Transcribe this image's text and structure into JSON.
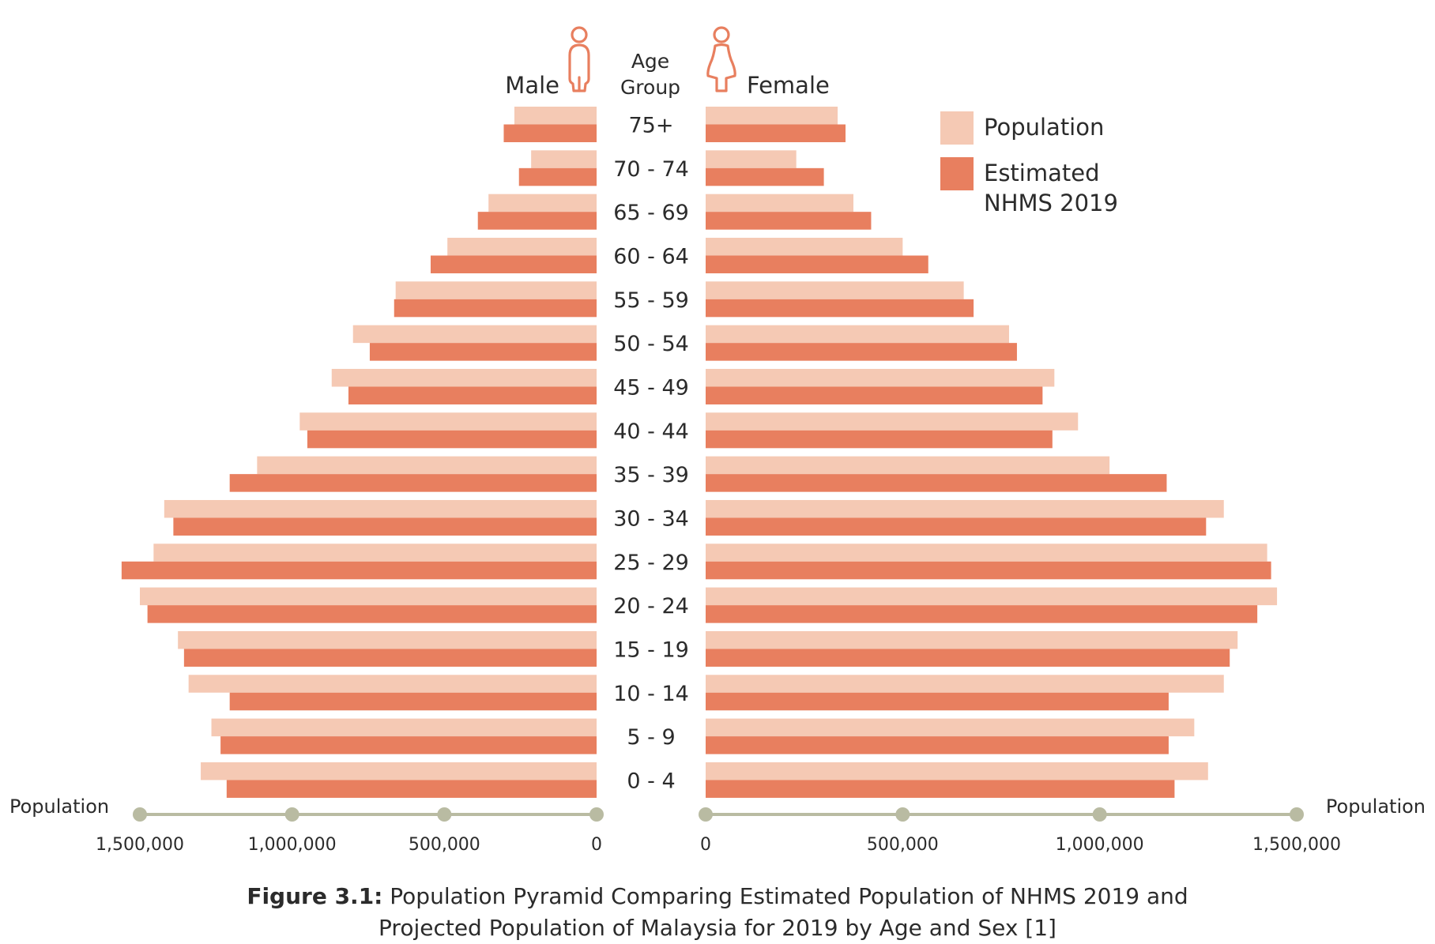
{
  "chart_data": {
    "type": "bar",
    "subtype": "population-pyramid",
    "headers": {
      "male": "Male",
      "female": "Female",
      "age_group_line1": "Age",
      "age_group_line2": "Group"
    },
    "categories": [
      "75+",
      "70 - 74",
      "65 - 69",
      "60 - 64",
      "55 - 59",
      "50 - 54",
      "45 - 49",
      "40 - 44",
      "35 - 39",
      "30 - 34",
      "25 - 29",
      "20 - 24",
      "15 - 19",
      "10 - 14",
      "5 - 9",
      "0 - 4"
    ],
    "series": [
      {
        "name": "Population",
        "sex": "male",
        "values": [
          270000,
          215000,
          355000,
          490000,
          660000,
          800000,
          870000,
          975000,
          1115000,
          1420000,
          1455000,
          1500000,
          1375000,
          1340000,
          1265000,
          1300000
        ]
      },
      {
        "name": "Estimated NHMS 2019",
        "sex": "male",
        "values": [
          305000,
          255000,
          390000,
          545000,
          665000,
          745000,
          815000,
          950000,
          1205000,
          1390000,
          1560000,
          1475000,
          1355000,
          1205000,
          1235000,
          1215000
        ]
      },
      {
        "name": "Population",
        "sex": "female",
        "values": [
          335000,
          230000,
          375000,
          500000,
          655000,
          770000,
          885000,
          945000,
          1025000,
          1315000,
          1425000,
          1450000,
          1350000,
          1315000,
          1240000,
          1275000
        ]
      },
      {
        "name": "Estimated NHMS 2019",
        "sex": "female",
        "values": [
          355000,
          300000,
          420000,
          565000,
          680000,
          790000,
          855000,
          880000,
          1170000,
          1270000,
          1435000,
          1400000,
          1330000,
          1175000,
          1175000,
          1190000
        ]
      }
    ],
    "legend": {
      "position": "top-right",
      "items": [
        {
          "label_lines": [
            "Population"
          ],
          "color": "#f5c9b4"
        },
        {
          "label_lines": [
            "Estimated",
            "NHMS 2019"
          ],
          "color": "#e87f5f"
        }
      ]
    },
    "axis": {
      "left_label": "Population",
      "right_label": "Population",
      "male_ticks": [
        {
          "value": 1500000,
          "label": "1,500,000"
        },
        {
          "value": 1000000,
          "label": "1,000,000"
        },
        {
          "value": 500000,
          "label": "500,000"
        },
        {
          "value": 0,
          "label": "0"
        }
      ],
      "female_ticks": [
        {
          "value": 0,
          "label": "0"
        },
        {
          "value": 500000,
          "label": "500,000"
        },
        {
          "value": 1000000,
          "label": "1,000,000"
        },
        {
          "value": 1500000,
          "label": "1,500,000"
        }
      ],
      "male_range": [
        0,
        1550000
      ],
      "female_range": [
        0,
        1500000
      ]
    },
    "colors": {
      "population": "#f5c9b4",
      "estimated": "#e87f5f",
      "axis": "#b9bba2",
      "icon": "#e87f5f"
    },
    "icons": {
      "male": "male-figure-icon",
      "female": "female-figure-icon"
    }
  },
  "caption": {
    "bold": "Figure 3.1:",
    "line1": " Population Pyramid Comparing Estimated Population of NHMS 2019 and",
    "line2": "Projected Population of Malaysia for 2019 by Age and Sex [1]"
  }
}
